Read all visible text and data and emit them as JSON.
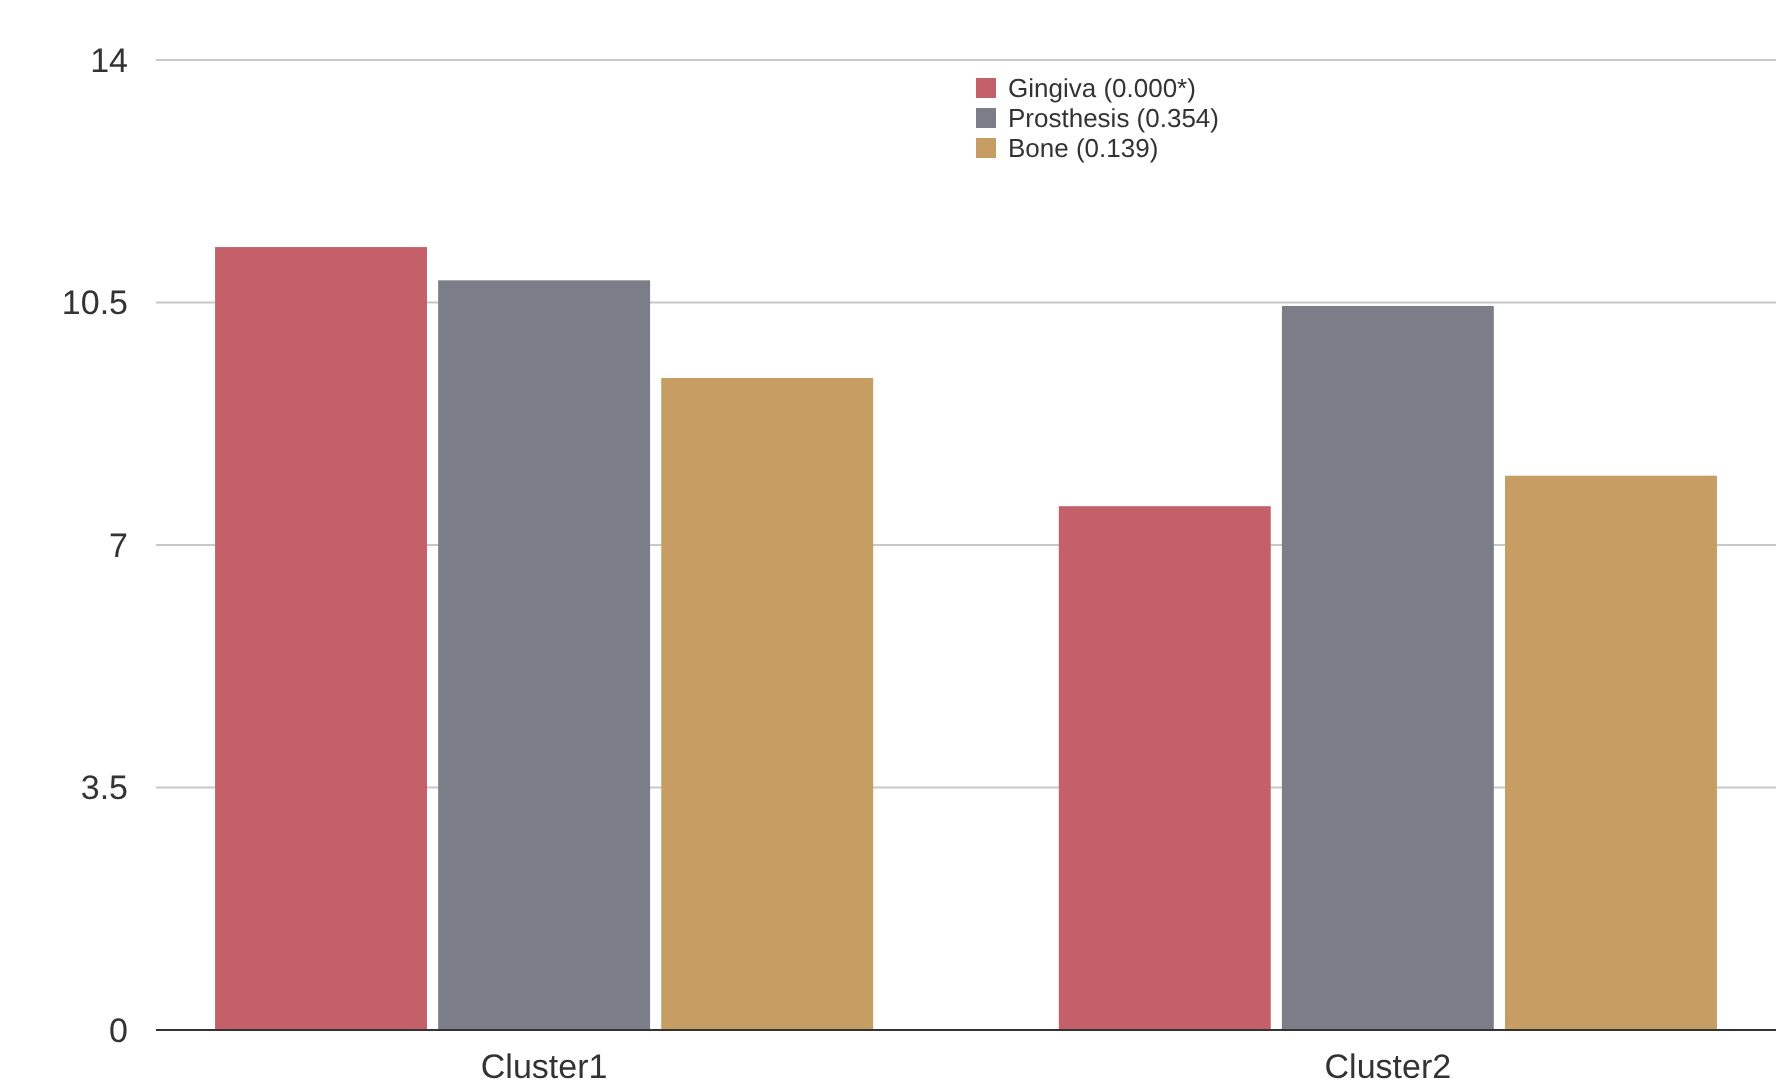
{
  "chart_data": {
    "type": "bar",
    "categories": [
      "Cluster1",
      "Cluster2"
    ],
    "series": [
      {
        "name": "Gingiva (0.000*)",
        "color": "#c4606a",
        "values": [
          11.3,
          7.56
        ]
      },
      {
        "name": "Prosthesis (0.354)",
        "color": "#7b7e89",
        "values": [
          10.82,
          10.45
        ]
      },
      {
        "name": "Bone (0.139)",
        "color": "#c69d62",
        "values": [
          9.41,
          8.0
        ]
      }
    ],
    "ylim": [
      0,
      14
    ],
    "yticks": [
      0,
      3.5,
      7,
      10.5,
      14
    ],
    "grid": "y",
    "legend": "top"
  }
}
